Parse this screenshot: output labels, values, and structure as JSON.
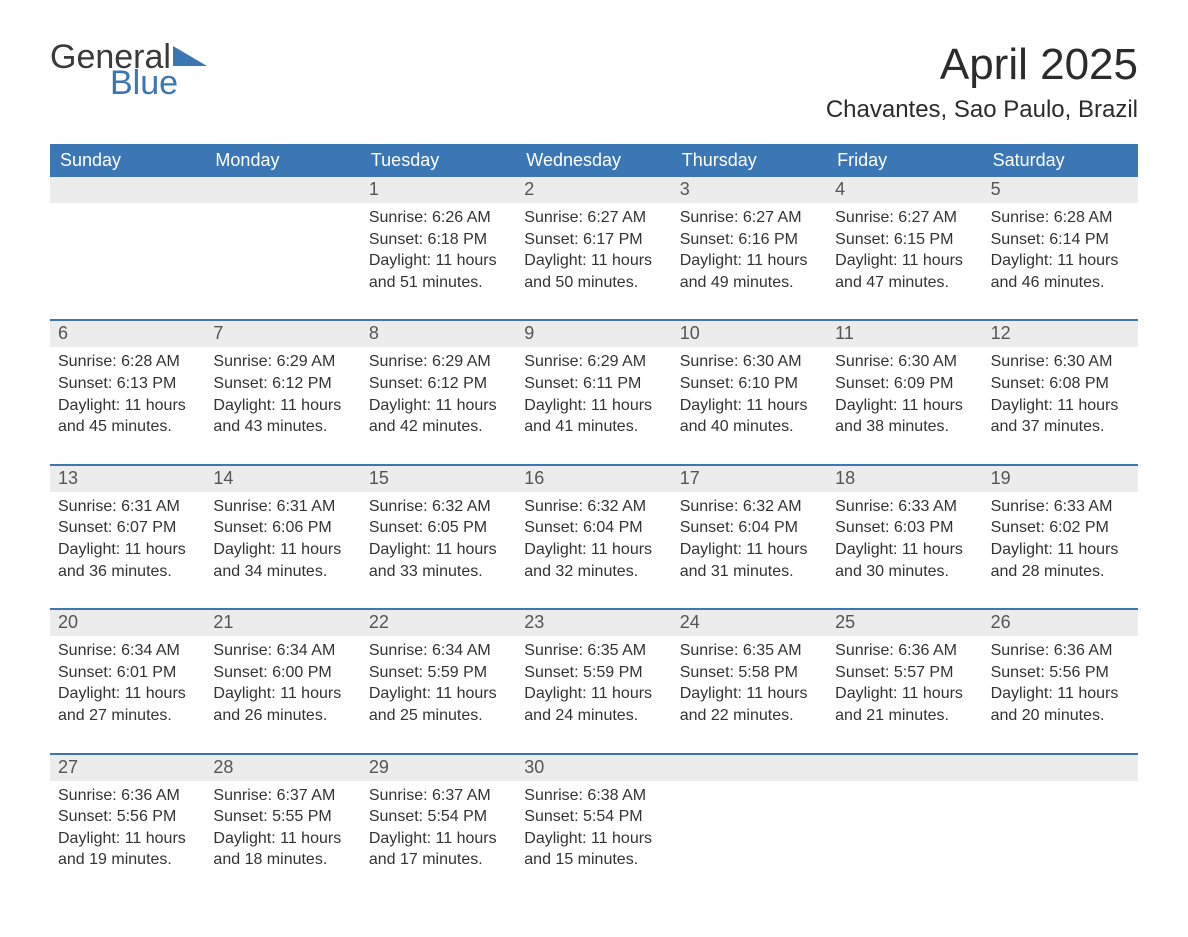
{
  "brand": {
    "word1": "General",
    "word2": "Blue",
    "tri_color": "#3b76b5"
  },
  "title": "April 2025",
  "location": "Chavantes, Sao Paulo, Brazil",
  "colors": {
    "header_bg": "#3b76b5",
    "header_fg": "#ffffff",
    "daynum_bg": "#ececec",
    "week_border": "#3b76b5",
    "text": "#333333"
  },
  "fonts": {
    "title_size_pt": 33,
    "location_size_pt": 18,
    "dayname_size_pt": 14,
    "body_size_pt": 12
  },
  "day_names": [
    "Sunday",
    "Monday",
    "Tuesday",
    "Wednesday",
    "Thursday",
    "Friday",
    "Saturday"
  ],
  "weeks": [
    [
      null,
      null,
      {
        "n": "1",
        "sunrise": "6:26 AM",
        "sunset": "6:18 PM",
        "daylight": "11 hours and 51 minutes."
      },
      {
        "n": "2",
        "sunrise": "6:27 AM",
        "sunset": "6:17 PM",
        "daylight": "11 hours and 50 minutes."
      },
      {
        "n": "3",
        "sunrise": "6:27 AM",
        "sunset": "6:16 PM",
        "daylight": "11 hours and 49 minutes."
      },
      {
        "n": "4",
        "sunrise": "6:27 AM",
        "sunset": "6:15 PM",
        "daylight": "11 hours and 47 minutes."
      },
      {
        "n": "5",
        "sunrise": "6:28 AM",
        "sunset": "6:14 PM",
        "daylight": "11 hours and 46 minutes."
      }
    ],
    [
      {
        "n": "6",
        "sunrise": "6:28 AM",
        "sunset": "6:13 PM",
        "daylight": "11 hours and 45 minutes."
      },
      {
        "n": "7",
        "sunrise": "6:29 AM",
        "sunset": "6:12 PM",
        "daylight": "11 hours and 43 minutes."
      },
      {
        "n": "8",
        "sunrise": "6:29 AM",
        "sunset": "6:12 PM",
        "daylight": "11 hours and 42 minutes."
      },
      {
        "n": "9",
        "sunrise": "6:29 AM",
        "sunset": "6:11 PM",
        "daylight": "11 hours and 41 minutes."
      },
      {
        "n": "10",
        "sunrise": "6:30 AM",
        "sunset": "6:10 PM",
        "daylight": "11 hours and 40 minutes."
      },
      {
        "n": "11",
        "sunrise": "6:30 AM",
        "sunset": "6:09 PM",
        "daylight": "11 hours and 38 minutes."
      },
      {
        "n": "12",
        "sunrise": "6:30 AM",
        "sunset": "6:08 PM",
        "daylight": "11 hours and 37 minutes."
      }
    ],
    [
      {
        "n": "13",
        "sunrise": "6:31 AM",
        "sunset": "6:07 PM",
        "daylight": "11 hours and 36 minutes."
      },
      {
        "n": "14",
        "sunrise": "6:31 AM",
        "sunset": "6:06 PM",
        "daylight": "11 hours and 34 minutes."
      },
      {
        "n": "15",
        "sunrise": "6:32 AM",
        "sunset": "6:05 PM",
        "daylight": "11 hours and 33 minutes."
      },
      {
        "n": "16",
        "sunrise": "6:32 AM",
        "sunset": "6:04 PM",
        "daylight": "11 hours and 32 minutes."
      },
      {
        "n": "17",
        "sunrise": "6:32 AM",
        "sunset": "6:04 PM",
        "daylight": "11 hours and 31 minutes."
      },
      {
        "n": "18",
        "sunrise": "6:33 AM",
        "sunset": "6:03 PM",
        "daylight": "11 hours and 30 minutes."
      },
      {
        "n": "19",
        "sunrise": "6:33 AM",
        "sunset": "6:02 PM",
        "daylight": "11 hours and 28 minutes."
      }
    ],
    [
      {
        "n": "20",
        "sunrise": "6:34 AM",
        "sunset": "6:01 PM",
        "daylight": "11 hours and 27 minutes."
      },
      {
        "n": "21",
        "sunrise": "6:34 AM",
        "sunset": "6:00 PM",
        "daylight": "11 hours and 26 minutes."
      },
      {
        "n": "22",
        "sunrise": "6:34 AM",
        "sunset": "5:59 PM",
        "daylight": "11 hours and 25 minutes."
      },
      {
        "n": "23",
        "sunrise": "6:35 AM",
        "sunset": "5:59 PM",
        "daylight": "11 hours and 24 minutes."
      },
      {
        "n": "24",
        "sunrise": "6:35 AM",
        "sunset": "5:58 PM",
        "daylight": "11 hours and 22 minutes."
      },
      {
        "n": "25",
        "sunrise": "6:36 AM",
        "sunset": "5:57 PM",
        "daylight": "11 hours and 21 minutes."
      },
      {
        "n": "26",
        "sunrise": "6:36 AM",
        "sunset": "5:56 PM",
        "daylight": "11 hours and 20 minutes."
      }
    ],
    [
      {
        "n": "27",
        "sunrise": "6:36 AM",
        "sunset": "5:56 PM",
        "daylight": "11 hours and 19 minutes."
      },
      {
        "n": "28",
        "sunrise": "6:37 AM",
        "sunset": "5:55 PM",
        "daylight": "11 hours and 18 minutes."
      },
      {
        "n": "29",
        "sunrise": "6:37 AM",
        "sunset": "5:54 PM",
        "daylight": "11 hours and 17 minutes."
      },
      {
        "n": "30",
        "sunrise": "6:38 AM",
        "sunset": "5:54 PM",
        "daylight": "11 hours and 15 minutes."
      },
      null,
      null,
      null
    ]
  ],
  "labels": {
    "sunrise_prefix": "Sunrise: ",
    "sunset_prefix": "Sunset: ",
    "daylight_prefix": "Daylight: "
  }
}
